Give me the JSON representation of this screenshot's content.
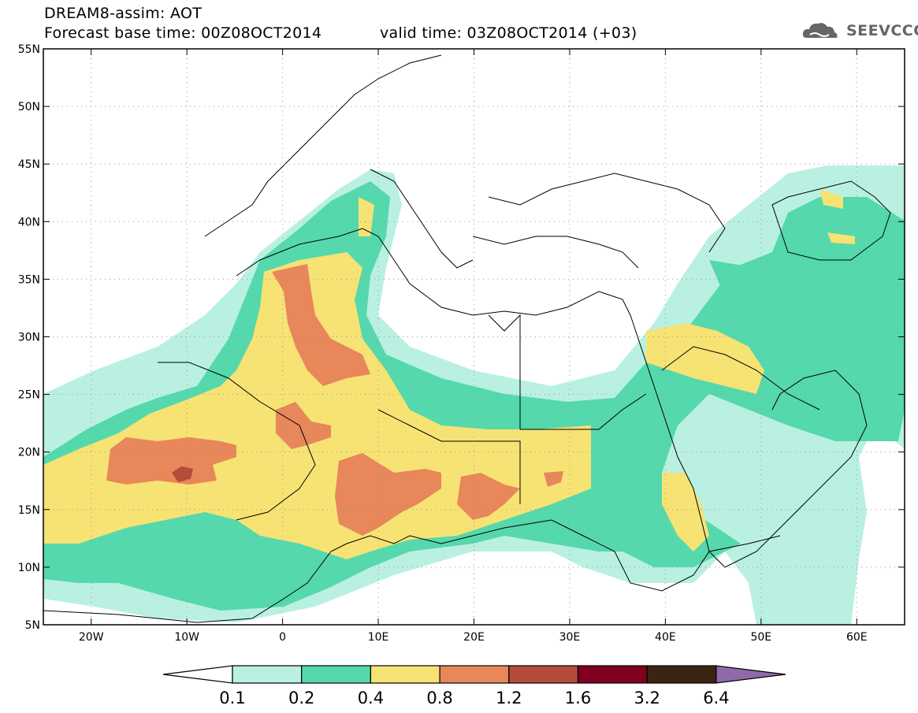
{
  "header": {
    "title_line1": "DREAM8-assim: AOT",
    "title_line2": "Forecast base time: 00Z08OCT2014",
    "valid_time": "valid time: 03Z08OCT2014 (+03)",
    "logo_text": "SEEVCCC"
  },
  "map": {
    "lon_range": [
      -25,
      65
    ],
    "lat_range": [
      5,
      55
    ],
    "lat_labels": [
      "55N",
      "50N",
      "45N",
      "40N",
      "35N",
      "30N",
      "25N",
      "20N",
      "15N",
      "10N",
      "5N"
    ],
    "lat_values": [
      55,
      50,
      45,
      40,
      35,
      30,
      25,
      20,
      15,
      10,
      5
    ],
    "lon_labels": [
      "20W",
      "10W",
      "0",
      "10E",
      "20E",
      "30E",
      "40E",
      "50E",
      "60E"
    ],
    "lon_values": [
      -20,
      -10,
      0,
      10,
      20,
      30,
      40,
      50,
      60
    ]
  },
  "colorbar": {
    "labels": [
      "0.1",
      "0.2",
      "0.4",
      "0.8",
      "1.2",
      "1.6",
      "3.2",
      "6.4"
    ],
    "colors": [
      "#ffffff",
      "#b9f0e2",
      "#55d8ac",
      "#f6e374",
      "#e8875a",
      "#b54b3a",
      "#800020",
      "#3a2413",
      "#8e6aa8"
    ]
  },
  "palette": {
    "aot_0_1_0_2": "#b9f0e2",
    "aot_0_2_0_4": "#55d8ac",
    "aot_0_4_0_8": "#f6e374",
    "aot_0_8_1_2": "#e8875a",
    "aot_1_2_1_6": "#b54b3a"
  }
}
